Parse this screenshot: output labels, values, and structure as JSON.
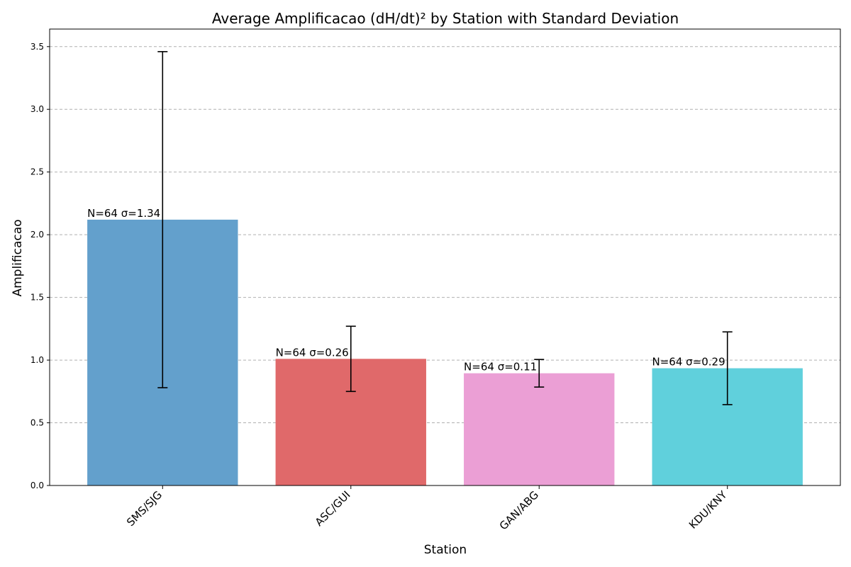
{
  "chart_data": {
    "type": "bar",
    "title": "Average Amplificacao (dH/dt)² by Station with Standard Deviation",
    "xlabel": "Station",
    "ylabel": "Amplificacao",
    "categories": [
      "SMS/SJG",
      "ASC/GUI",
      "GAN/ABG",
      "KDU/KNY"
    ],
    "values": [
      2.12,
      1.01,
      0.895,
      0.935
    ],
    "errors": [
      1.34,
      0.26,
      0.11,
      0.29
    ],
    "counts": [
      64,
      64,
      64,
      64
    ],
    "bar_labels": [
      "N=64 σ=1.34",
      "N=64 σ=0.26",
      "N=64 σ=0.11",
      "N=64 σ=0.29"
    ],
    "colors": [
      "#63a0cc",
      "#e0696a",
      "#eb9fd5",
      "#60d0dc"
    ],
    "ylim": [
      0,
      3.64
    ],
    "yticks": [
      0.0,
      0.5,
      1.0,
      1.5,
      2.0,
      2.5,
      3.0,
      3.5
    ],
    "ytick_labels": [
      "0.0",
      "0.5",
      "1.0",
      "1.5",
      "2.0",
      "2.5",
      "3.0",
      "3.5"
    ],
    "grid": "y-dashed",
    "legend": "none"
  }
}
